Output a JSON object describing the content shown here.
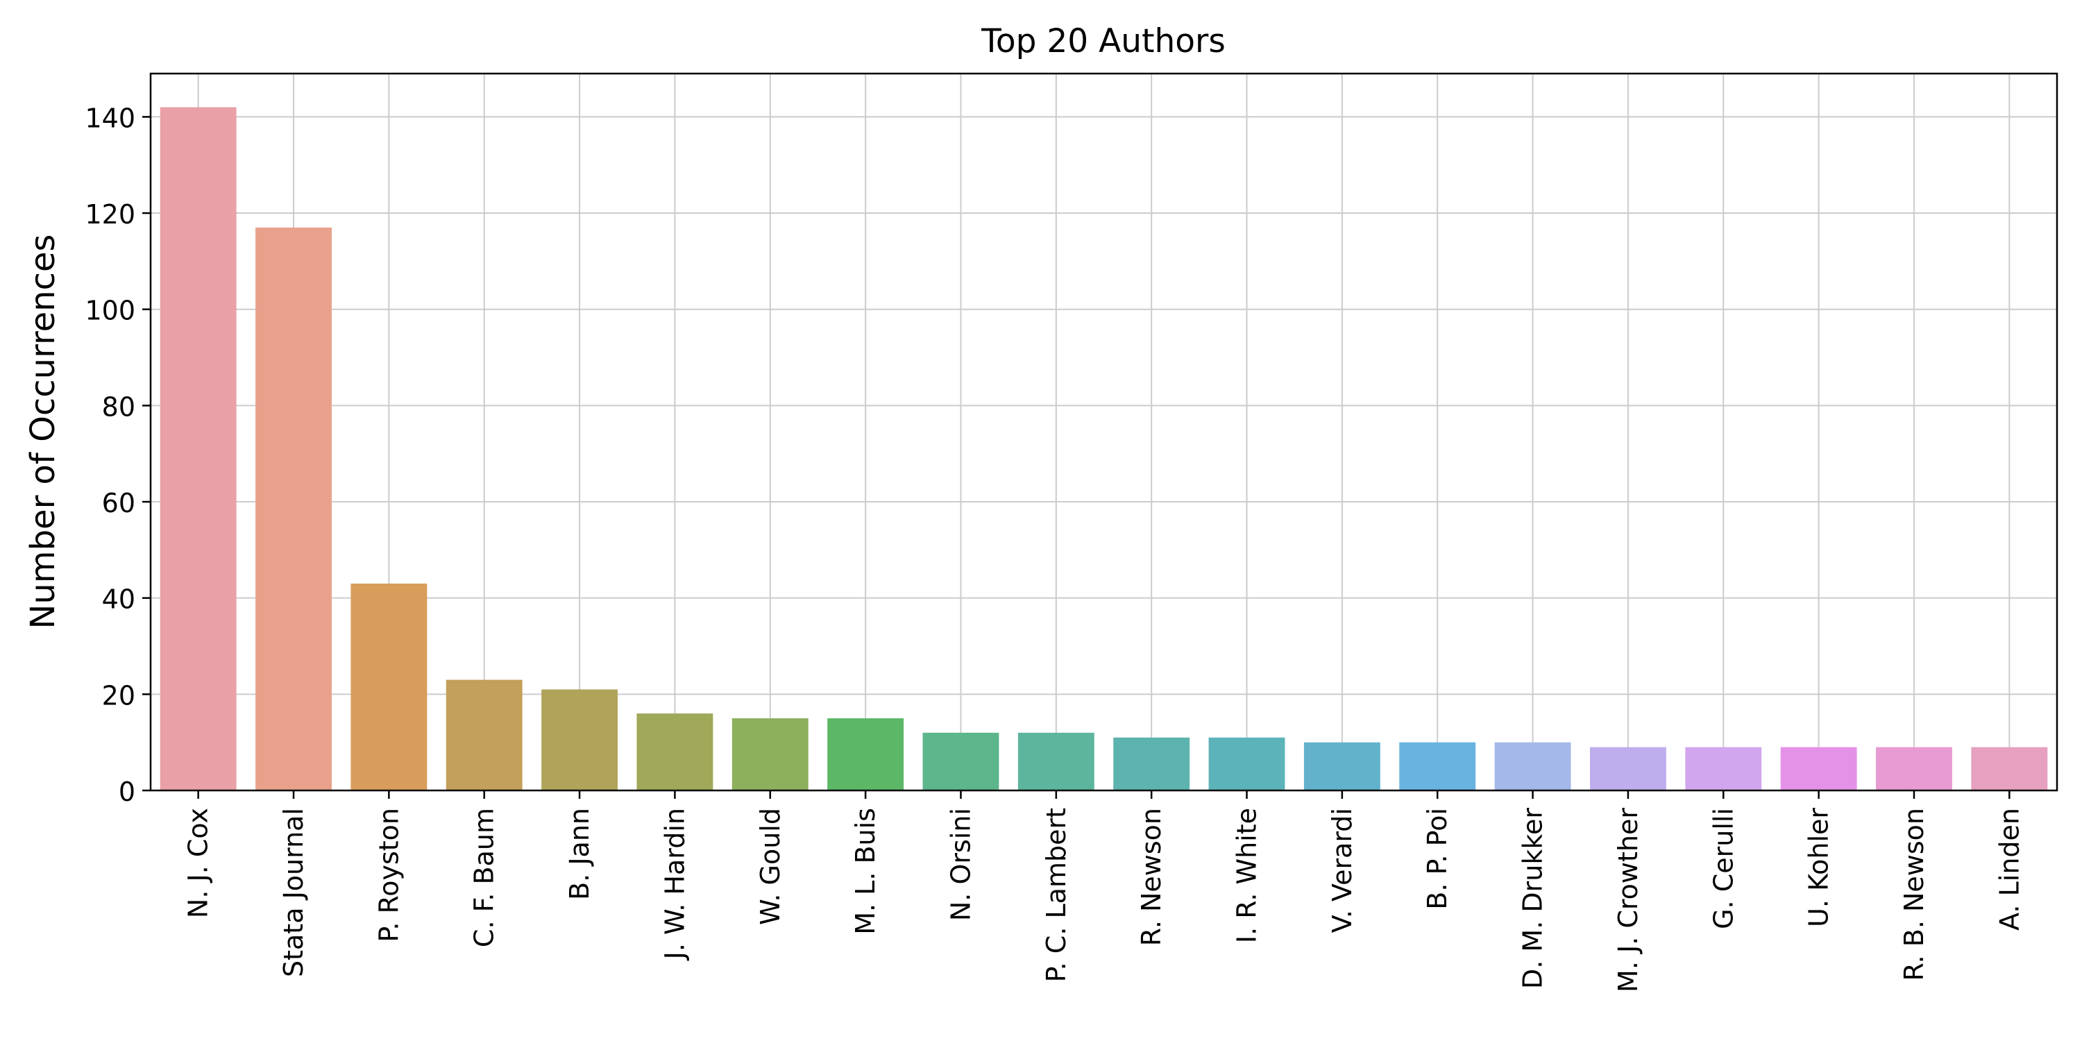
{
  "chart_data": {
    "type": "bar",
    "title": "Top 20 Authors",
    "xlabel": "",
    "ylabel": "Number of Occurrences",
    "ylim": [
      0,
      149
    ],
    "yticks": [
      0,
      20,
      40,
      60,
      80,
      100,
      120,
      140
    ],
    "grid": true,
    "categories": [
      "N. J. Cox",
      "Stata Journal",
      "P. Royston",
      "C. F. Baum",
      "B. Jann",
      "J. W. Hardin",
      "W. Gould",
      "M. L. Buis",
      "N. Orsini",
      "P. C. Lambert",
      "R. Newson",
      "I. R. White",
      "V. Verardi",
      "B. P. Poi",
      "D. M. Drukker",
      "M. J. Crowther",
      "G. Cerulli",
      "U. Kohler",
      "R. B. Newson",
      "A. Linden"
    ],
    "values": [
      142,
      117,
      43,
      23,
      21,
      16,
      15,
      15,
      12,
      12,
      11,
      11,
      10,
      10,
      10,
      9,
      9,
      9,
      9,
      9
    ],
    "colors": [
      "#e9a0a6",
      "#e8a28c",
      "#d89c5b",
      "#c3a05b",
      "#b0a45a",
      "#a0a85a",
      "#8cb05c",
      "#5cb867",
      "#5db58c",
      "#5db59e",
      "#5db3ae",
      "#5db3ba",
      "#62b2cc",
      "#69b3e0",
      "#a5b8ea",
      "#bfaeed",
      "#d2a6ee",
      "#e491e8",
      "#e89ad2",
      "#e6a0c0"
    ]
  }
}
